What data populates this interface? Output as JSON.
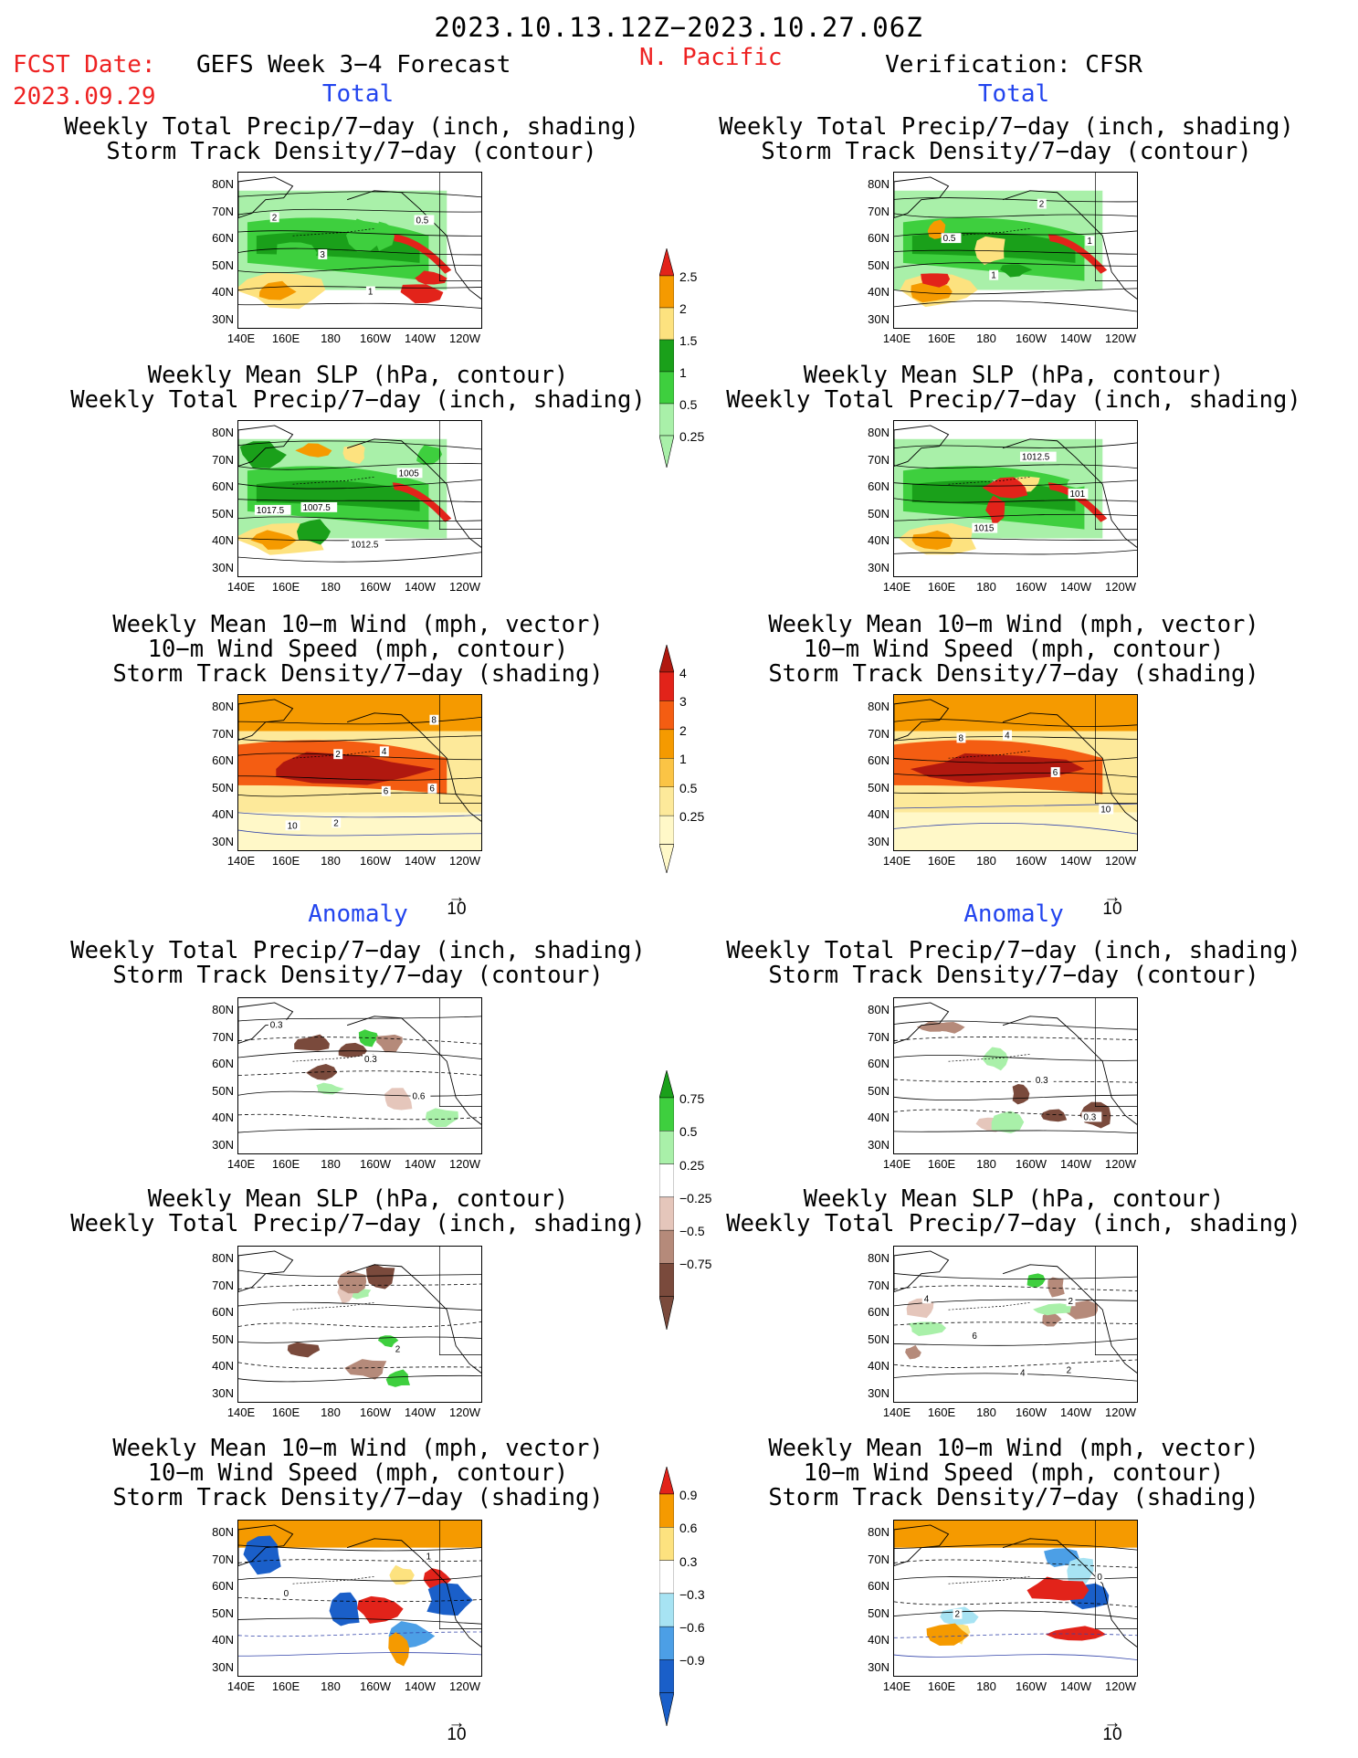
{
  "header": {
    "date_range": "2023.10.13.12Z−2023.10.27.06Z",
    "fcst_label": "FCST Date:",
    "fcst_date": "2023.09.29",
    "model": "GEFS Week 3−4 Forecast",
    "region": "N. Pacific",
    "verification": "Verification: CFSR"
  },
  "sections": {
    "total": "Total",
    "anomaly": "Anomaly"
  },
  "titles": {
    "precip_storm": [
      "Weekly Total Precip/7−day (inch, shading)",
      "Storm Track Density/7−day (contour)"
    ],
    "slp_precip": [
      "Weekly Mean SLP (hPa, contour)",
      "Weekly Total Precip/7−day (inch, shading)"
    ],
    "wind_storm": [
      "Weekly Mean 10−m Wind (mph, vector)",
      "10−m Wind Speed (mph, contour)",
      "Storm Track Density/7−day (shading)"
    ]
  },
  "axes": {
    "lat_labels": [
      "80N",
      "70N",
      "60N",
      "50N",
      "40N",
      "30N"
    ],
    "lon_labels": [
      "140E",
      "160E",
      "180",
      "160W",
      "140W",
      "120W"
    ]
  },
  "vector_reference": "10",
  "colorbars": {
    "precip_total": {
      "labels": [
        "2.5",
        "2",
        "1.5",
        "1",
        "0.5",
        "0.25"
      ],
      "colors": [
        "#e2231a",
        "#f59a00",
        "#fde27f",
        "#1aa01a",
        "#3ecf3e",
        "#a9f0a9"
      ]
    },
    "storm_total": {
      "labels": [
        "4",
        "3",
        "2",
        "1",
        "0.5",
        "0.25"
      ],
      "colors": [
        "#b0180f",
        "#e2231a",
        "#f45d12",
        "#f59a00",
        "#fbc445",
        "#fde99a",
        "#fff8c8"
      ]
    },
    "precip_anom": {
      "labels": [
        "0.75",
        "0.5",
        "0.25",
        "−0.25",
        "−0.5",
        "−0.75"
      ],
      "colors": [
        "#1aa01a",
        "#3ecf3e",
        "#a9f0a9",
        "#ffffff",
        "#e5c6bb",
        "#b58a7a",
        "#7a4a3c"
      ]
    },
    "storm_anom": {
      "labels": [
        "0.9",
        "0.6",
        "0.3",
        "−0.3",
        "−0.6",
        "−0.9"
      ],
      "colors": [
        "#e2231a",
        "#f59a00",
        "#fde27f",
        "#ffffff",
        "#a7e3f3",
        "#4c9fe6",
        "#1a5fc9"
      ]
    }
  },
  "panels": {
    "p1": {
      "labels": [
        "2",
        "3",
        "1",
        "0.5"
      ]
    },
    "p2": {
      "labels": [
        "0.5",
        "1",
        "2",
        "1"
      ]
    },
    "p3": {
      "labels": [
        "1007.5",
        "1012.5",
        "1005",
        "1017.5"
      ]
    },
    "p4": {
      "labels": [
        "1015",
        "1012.5",
        "101"
      ]
    },
    "p5": {
      "labels": [
        "2",
        "4",
        "6",
        "10",
        "2",
        "6",
        "8"
      ]
    },
    "p6": {
      "labels": [
        "4",
        "6",
        "10",
        "8"
      ]
    },
    "p7": {
      "labels": [
        "0.3",
        "0.6",
        "0.3"
      ]
    },
    "p8": {
      "labels": [
        "0.3",
        "0.3"
      ]
    },
    "p9": {
      "labels": [
        "2"
      ]
    },
    "p10": {
      "labels": [
        "2",
        "4",
        "6",
        "4",
        "2"
      ]
    },
    "p11": {
      "labels": [
        "1",
        "0"
      ]
    },
    "p12": {
      "labels": [
        "0",
        "2"
      ]
    }
  }
}
